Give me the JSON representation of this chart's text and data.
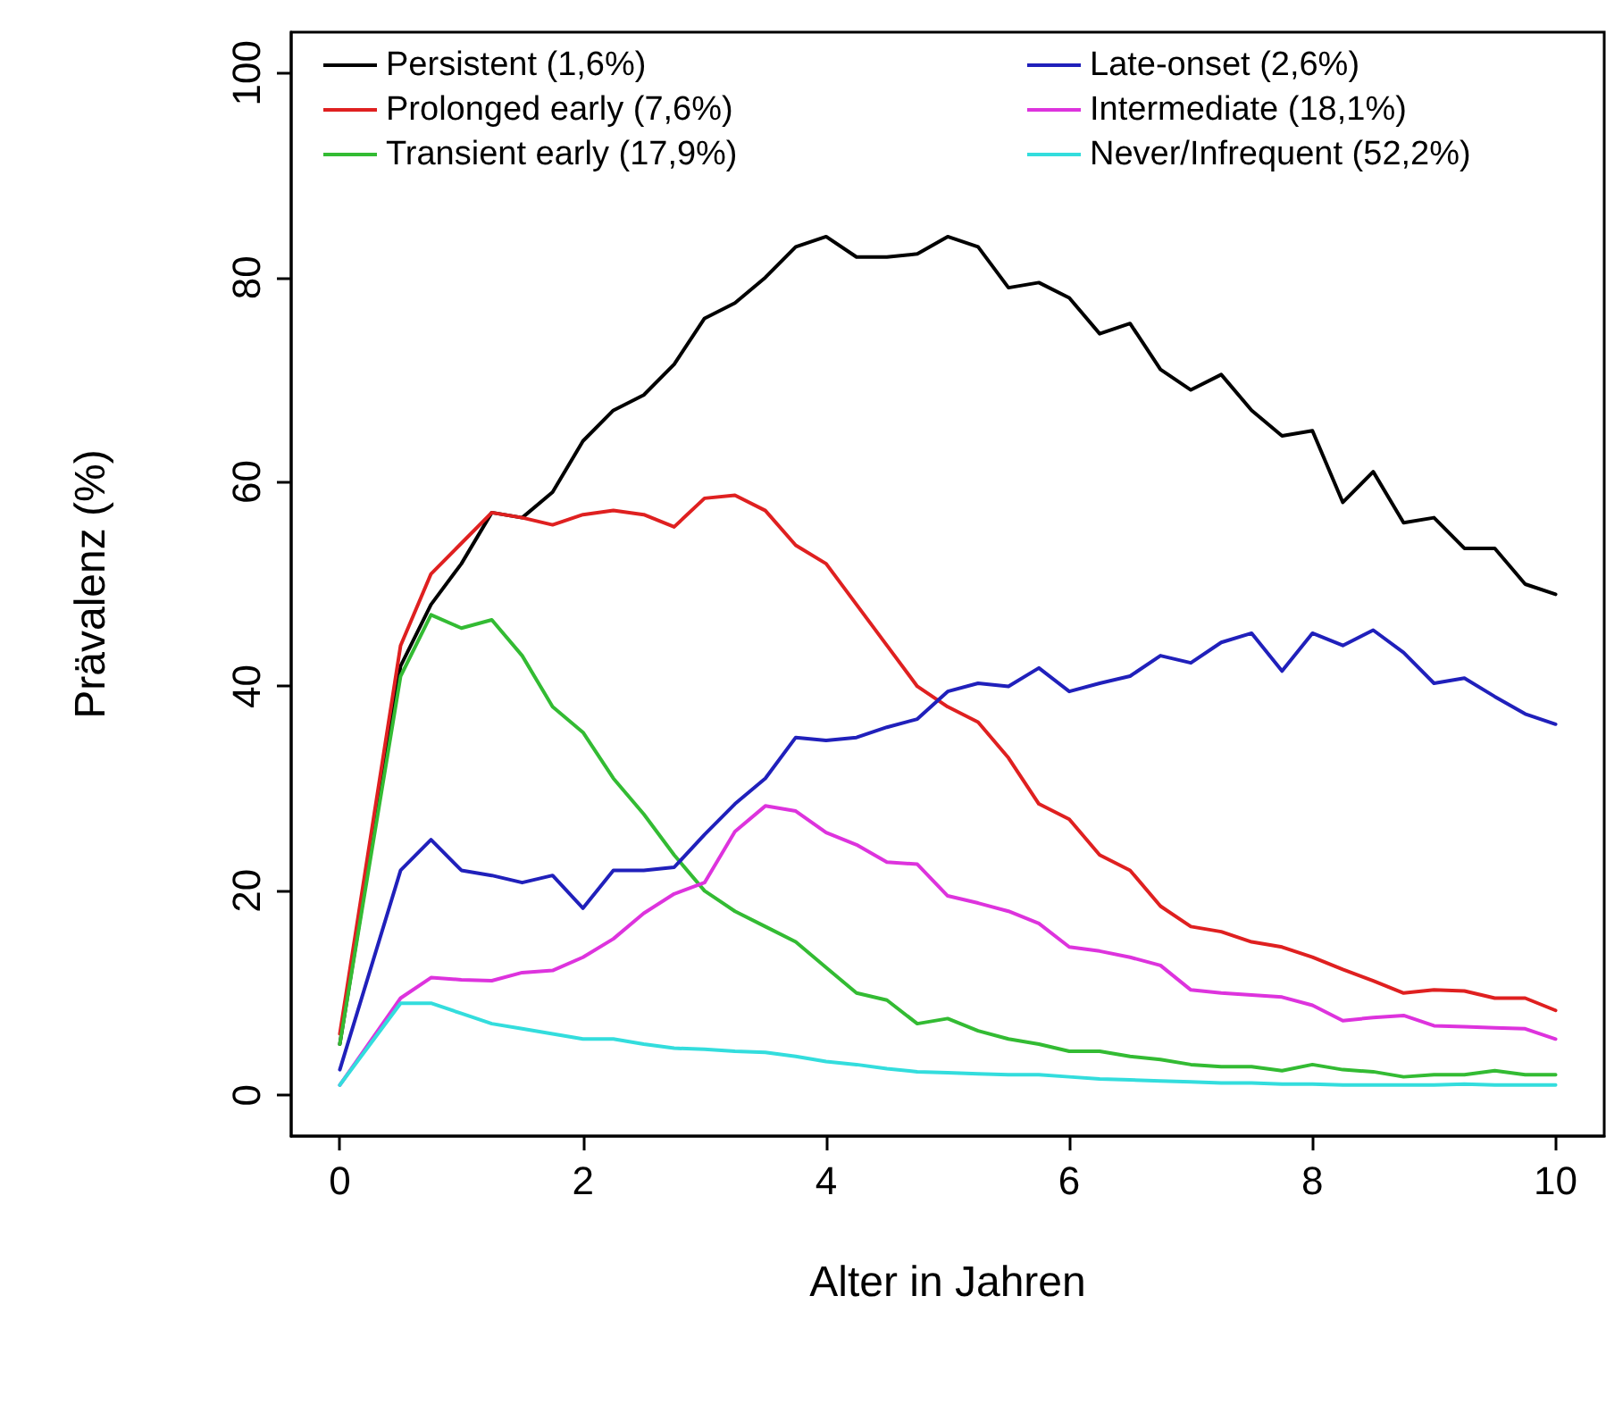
{
  "chart_data": {
    "type": "line",
    "xlabel": "Alter in Jahren",
    "ylabel": "Prävalenz (%)",
    "x": [
      0,
      0.5,
      0.75,
      1,
      1.25,
      1.5,
      1.75,
      2,
      2.25,
      2.5,
      2.75,
      3,
      3.25,
      3.5,
      3.75,
      4,
      4.25,
      4.5,
      4.75,
      5,
      5.25,
      5.5,
      5.75,
      6,
      6.25,
      6.5,
      6.75,
      7,
      7.25,
      7.5,
      7.75,
      8,
      8.25,
      8.5,
      8.75,
      9,
      9.25,
      9.5,
      9.75,
      10
    ],
    "series": [
      {
        "name": "Persistent (1,6%)",
        "color": "#000000",
        "values": [
          5,
          42,
          48,
          52,
          57,
          56.5,
          59,
          64,
          67,
          68.5,
          71.5,
          76,
          77.5,
          80,
          83,
          84,
          82,
          82,
          82.3,
          84,
          83,
          79,
          79.5,
          78,
          74.5,
          75.5,
          71,
          69,
          70.5,
          67,
          64.5,
          65,
          58,
          61,
          56,
          56.5,
          53.5,
          53.5,
          50,
          49
        ]
      },
      {
        "name": "Prolonged early (7,6%)",
        "color": "#df2020",
        "values": [
          6,
          44,
          51,
          54,
          57,
          56.5,
          55.8,
          56.8,
          57.2,
          56.8,
          55.6,
          58.4,
          58.7,
          57.2,
          53.8,
          52,
          48,
          44,
          40,
          38,
          36.5,
          33,
          28.5,
          27,
          23.5,
          22,
          18.5,
          16.5,
          16,
          15,
          14.5,
          13.5,
          12.3,
          11.2,
          10,
          10.3,
          10.2,
          9.5,
          9.5,
          8.3
        ]
      },
      {
        "name": "Transient early (17,9%)",
        "color": "#33bb33",
        "values": [
          5,
          41,
          47,
          45.7,
          46.5,
          43,
          38,
          35.5,
          31,
          27.5,
          23.5,
          20,
          18,
          16.5,
          15,
          12.5,
          10,
          9.3,
          7,
          7.5,
          6.3,
          5.5,
          5,
          4.3,
          4.3,
          3.8,
          3.5,
          3,
          2.8,
          2.8,
          2.4,
          3,
          2.5,
          2.3,
          1.8,
          2,
          2,
          2.4,
          2,
          2
        ]
      },
      {
        "name": "Late-onset (2,6%)",
        "color": "#2020bb",
        "values": [
          2.5,
          22,
          25,
          22,
          21.5,
          20.8,
          21.5,
          18.3,
          22,
          22,
          22.3,
          25.5,
          28.5,
          31,
          35,
          34.7,
          35,
          36,
          36.8,
          39.5,
          40.3,
          40,
          41.8,
          39.5,
          40.3,
          41,
          43,
          42.3,
          44.3,
          45.2,
          41.5,
          45.2,
          44,
          45.5,
          43.3,
          40.3,
          40.8,
          39,
          37.3,
          36.3
        ]
      },
      {
        "name": "Intermediate (18,1%)",
        "color": "#dd33dd",
        "values": [
          1,
          9.5,
          11.5,
          11.3,
          11.2,
          12,
          12.2,
          13.5,
          15.3,
          17.8,
          19.7,
          20.8,
          25.8,
          28.3,
          27.8,
          25.7,
          24.5,
          22.8,
          22.6,
          19.5,
          18.8,
          18,
          16.8,
          14.5,
          14.1,
          13.5,
          12.7,
          10.3,
          10,
          9.8,
          9.6,
          8.8,
          7.3,
          7.6,
          7.8,
          6.8,
          6.7,
          6.6,
          6.5,
          5.5
        ]
      },
      {
        "name": "Never/Infrequent (52,2%)",
        "color": "#33dddd",
        "values": [
          1,
          9,
          9,
          8,
          7,
          6.5,
          6,
          5.5,
          5.5,
          5,
          4.6,
          4.5,
          4.3,
          4.2,
          3.8,
          3.3,
          3,
          2.6,
          2.3,
          2.2,
          2.1,
          2,
          2,
          1.8,
          1.6,
          1.5,
          1.4,
          1.3,
          1.2,
          1.2,
          1.1,
          1.1,
          1,
          1,
          1,
          1,
          1.1,
          1,
          1,
          1
        ]
      }
    ],
    "xlim": [
      -0.4,
      10.4
    ],
    "xticks": [
      0,
      2,
      4,
      6,
      8,
      10
    ],
    "ylim": [
      -4,
      104
    ],
    "yticks": [
      0,
      20,
      40,
      60,
      80,
      100
    ],
    "grid": false,
    "legend": "top",
    "marker": "none",
    "line_style": "solid"
  }
}
